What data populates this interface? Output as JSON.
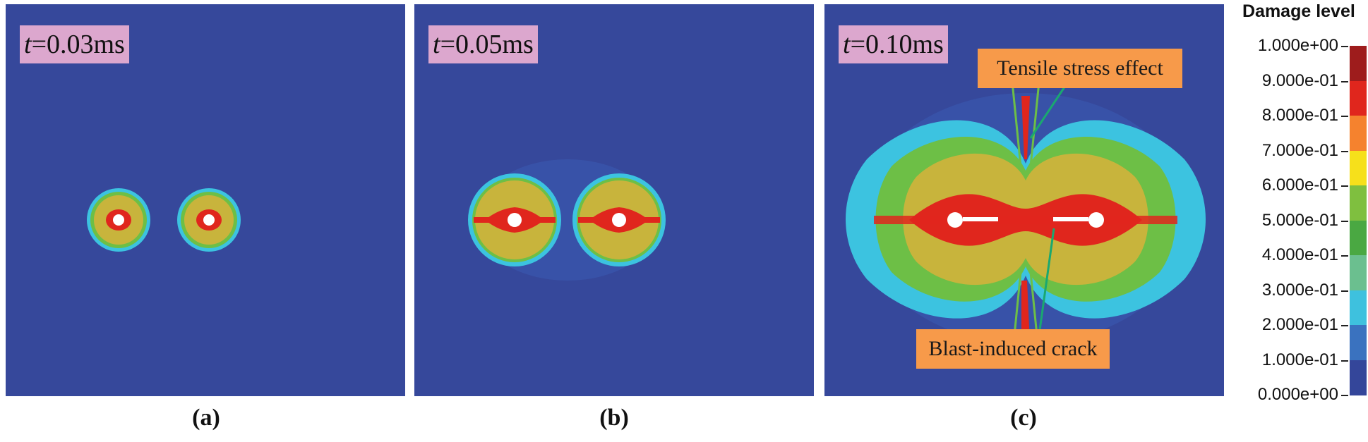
{
  "panels": [
    {
      "time_prefix": "t",
      "time_value": "=0.03ms",
      "caption": "(a)"
    },
    {
      "time_prefix": "t",
      "time_value": "=0.05ms",
      "caption": "(b)"
    },
    {
      "time_prefix": "t",
      "time_value": "=0.10ms",
      "caption": "(c)"
    }
  ],
  "annotations": {
    "tensile": "Tensile stress effect",
    "crack": "Blast-induced crack"
  },
  "legend": {
    "title": "Damage level",
    "ticks": [
      "1.000e+00",
      "9.000e-01",
      "8.000e-01",
      "7.000e-01",
      "6.000e-01",
      "5.000e-01",
      "4.000e-01",
      "3.000e-01",
      "2.000e-01",
      "1.000e-01",
      "0.000e+00"
    ],
    "colors": [
      "#9e1c1c",
      "#e0261d",
      "#f5822e",
      "#f6e01b",
      "#7fbf3f",
      "#4aa842",
      "#6bbf8f",
      "#3ec1de",
      "#3a72bf",
      "#34469a"
    ]
  },
  "palette": {
    "background": "#36489b",
    "light_blue": "#3cc3e0",
    "cyan_dark": "#2ab5d8",
    "green": "#6dbf46",
    "yellow": "#c8b43c",
    "red": "#e0261d",
    "hole": "#ffffff",
    "arrow": "#1aa870"
  }
}
